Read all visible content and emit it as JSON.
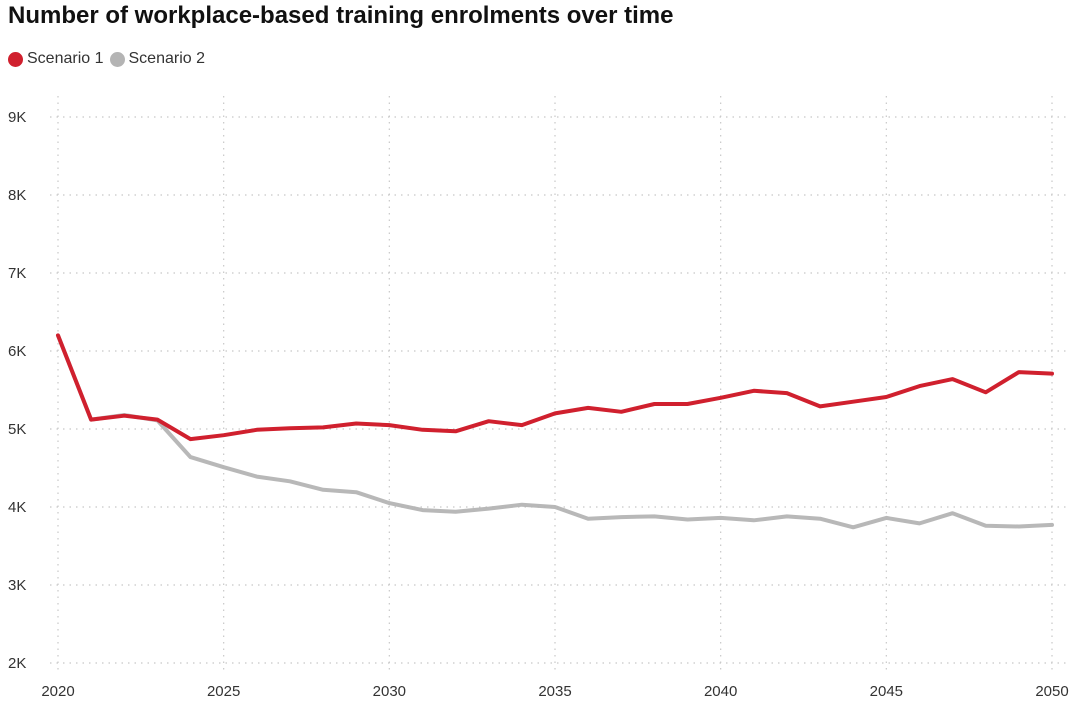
{
  "chart_data": {
    "type": "line",
    "title": "Number of workplace-based training enrolments over time",
    "xlabel": "",
    "ylabel": "",
    "x": [
      2020,
      2021,
      2022,
      2023,
      2024,
      2025,
      2026,
      2027,
      2028,
      2029,
      2030,
      2031,
      2032,
      2033,
      2034,
      2035,
      2036,
      2037,
      2038,
      2039,
      2040,
      2041,
      2042,
      2043,
      2044,
      2045,
      2046,
      2047,
      2048,
      2049,
      2050
    ],
    "xlim": [
      2020,
      2050
    ],
    "ylim": [
      2000,
      9200
    ],
    "x_ticks": [
      2020,
      2025,
      2030,
      2035,
      2040,
      2045,
      2050
    ],
    "x_tick_labels": [
      "2020",
      "2025",
      "2030",
      "2035",
      "2040",
      "2045",
      "2050"
    ],
    "y_ticks": [
      2000,
      3000,
      4000,
      5000,
      6000,
      7000,
      8000,
      9000
    ],
    "y_tick_labels": [
      "2K",
      "3K",
      "4K",
      "5K",
      "6K",
      "7K",
      "8K",
      "9K"
    ],
    "grid": true,
    "legend_position": "top-left",
    "series": [
      {
        "name": "Scenario 1",
        "color": "#d0202e",
        "values": [
          6200,
          5120,
          5170,
          5120,
          4870,
          4920,
          4990,
          5010,
          5020,
          5070,
          5050,
          4990,
          4970,
          5100,
          5050,
          5200,
          5270,
          5220,
          5320,
          5320,
          5400,
          5490,
          5460,
          5290,
          5350,
          5410,
          5550,
          5640,
          5470,
          5730,
          5710
        ]
      },
      {
        "name": "Scenario 2",
        "color": "#b4b4b4",
        "values": [
          6200,
          5120,
          5180,
          5110,
          4640,
          4510,
          4390,
          4330,
          4220,
          4190,
          4050,
          3960,
          3940,
          3980,
          4030,
          4000,
          3850,
          3870,
          3880,
          3840,
          3860,
          3830,
          3880,
          3850,
          3740,
          3860,
          3790,
          3920,
          3760,
          3750,
          3770
        ]
      }
    ]
  }
}
